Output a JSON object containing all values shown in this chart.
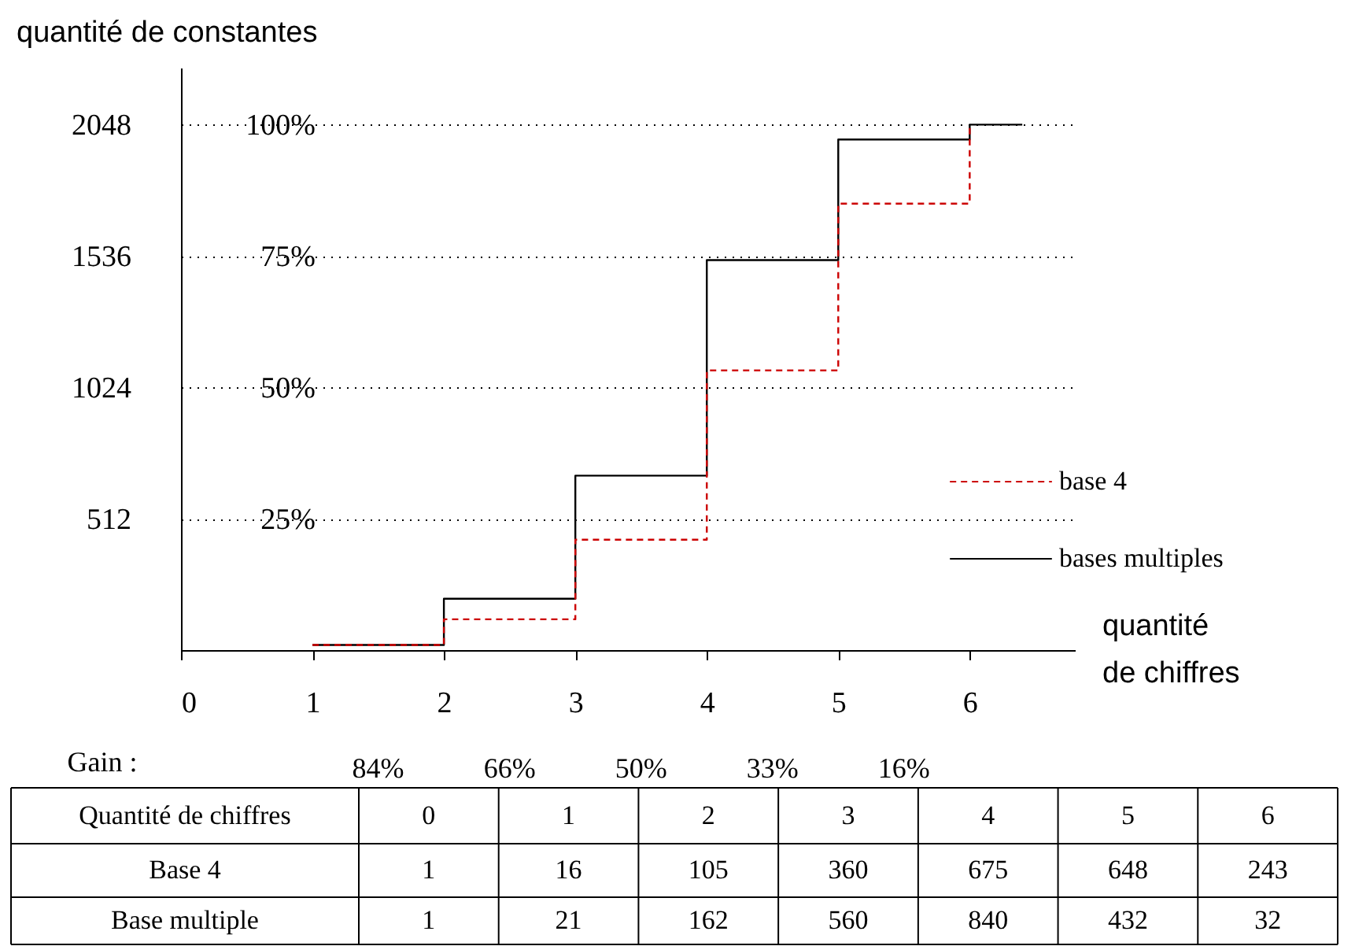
{
  "chart_data": {
    "type": "step",
    "xlabel": "quantité de chiffres",
    "ylabel": "quantité de constantes",
    "xlim": [
      0,
      6.8
    ],
    "xticks": [
      0,
      1,
      2,
      3,
      4,
      5,
      6
    ],
    "ylim": [
      0,
      2270
    ],
    "yticks": [
      512,
      1024,
      1536,
      2048
    ],
    "y2lim": [
      0,
      110.8
    ],
    "y2ticks": [
      {
        "value": 25,
        "label": "25%"
      },
      {
        "value": 50,
        "label": "50%"
      },
      {
        "value": 75,
        "label": "75%"
      },
      {
        "value": 100,
        "label": "100%"
      }
    ],
    "grid": "y",
    "legend": "right",
    "series": [
      {
        "name": "base 4",
        "color": "#cc0000",
        "line_style": "dashed",
        "x": [
          1,
          2,
          3,
          4,
          5,
          6
        ],
        "values": [
          20,
          120,
          430,
          1090,
          1740,
          2048
        ]
      },
      {
        "name": "bases multiples",
        "color": "#000000",
        "line_style": "solid",
        "x": [
          1,
          2,
          3,
          4,
          5,
          6,
          6.4
        ],
        "values": [
          20,
          200,
          680,
          1520,
          1990,
          2048,
          2048
        ]
      }
    ],
    "annotations": [
      "Gain :",
      "84%",
      "66%",
      "50%",
      "33%",
      "16%",
      "Quantité de chiffres",
      "0",
      "1",
      "2",
      "3",
      "4",
      "5",
      "6",
      "Base 4",
      "1",
      "16",
      "105",
      "360",
      "675",
      "648",
      "243",
      "Base multiple",
      "1",
      "21",
      "162",
      "560",
      "840",
      "432",
      "32"
    ]
  }
}
